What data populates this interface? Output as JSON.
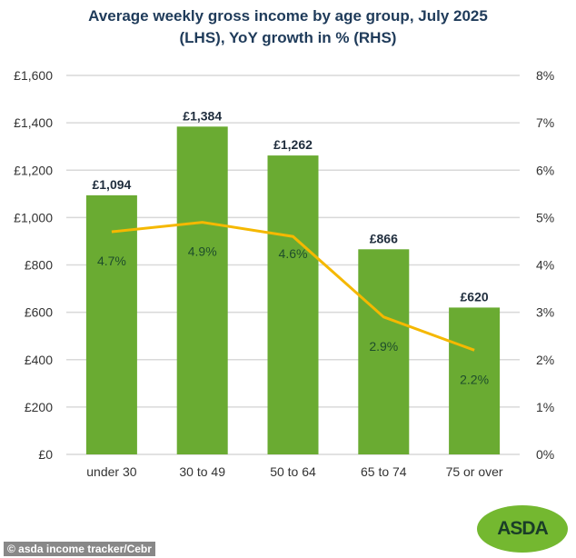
{
  "chart_data": {
    "type": "bar",
    "title_line1": "Average weekly gross income by age group, July 2025",
    "title_line2": "(LHS), YoY growth in % (RHS)",
    "categories": [
      "under 30",
      "30 to 49",
      "50 to 64",
      "65 to 74",
      "75 or over"
    ],
    "series": [
      {
        "name": "Average weekly gross income",
        "axis": "left",
        "type": "bar",
        "values": [
          1094,
          1384,
          1262,
          866,
          620
        ],
        "labels": [
          "£1,094",
          "£1,384",
          "£1,262",
          "£866",
          "£620"
        ],
        "color": "#6aab32"
      },
      {
        "name": "YoY growth",
        "axis": "right",
        "type": "line",
        "values": [
          4.7,
          4.9,
          4.6,
          2.9,
          2.2
        ],
        "labels": [
          "4.7%",
          "4.9%",
          "4.6%",
          "2.9%",
          "2.2%"
        ],
        "color": "#f5b800"
      }
    ],
    "ylim": [
      0,
      1600
    ],
    "y2lim": [
      0,
      8
    ],
    "yticks": [
      "£0",
      "£200",
      "£400",
      "£600",
      "£800",
      "£1,000",
      "£1,200",
      "£1,400",
      "£1,600"
    ],
    "y2ticks": [
      "0%",
      "1%",
      "2%",
      "3%",
      "4%",
      "5%",
      "6%",
      "7%",
      "8%"
    ],
    "grid": true
  },
  "credit": "© asda income tracker/Cebr",
  "logo": "ASDA"
}
